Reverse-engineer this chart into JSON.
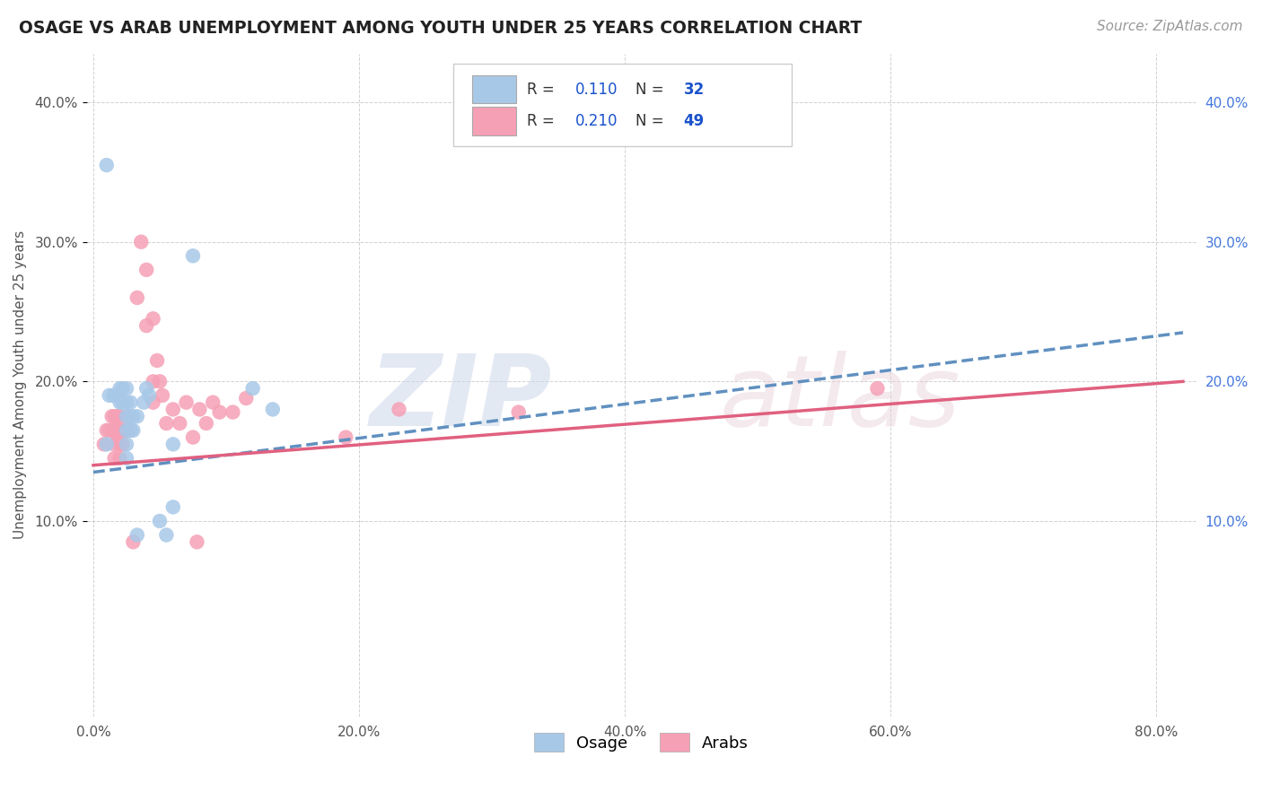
{
  "title": "OSAGE VS ARAB UNEMPLOYMENT AMONG YOUTH UNDER 25 YEARS CORRELATION CHART",
  "source": "Source: ZipAtlas.com",
  "ylabel": "Unemployment Among Youth under 25 years",
  "xlabel_ticks": [
    "0.0%",
    "20.0%",
    "40.0%",
    "60.0%",
    "80.0%"
  ],
  "xlabel_vals": [
    0.0,
    0.2,
    0.4,
    0.6,
    0.8
  ],
  "ylabel_ticks_left": [
    "10.0%",
    "20.0%",
    "30.0%",
    "40.0%"
  ],
  "ylabel_ticks_right": [
    "10.0%",
    "20.0%",
    "30.0%",
    "40.0%"
  ],
  "ylabel_vals": [
    0.1,
    0.2,
    0.3,
    0.4
  ],
  "xlim": [
    -0.005,
    0.83
  ],
  "ylim": [
    -0.04,
    0.435
  ],
  "osage_R": 0.11,
  "osage_N": 32,
  "arab_R": 0.21,
  "arab_N": 49,
  "osage_color": "#a8c8e8",
  "arab_color": "#f5a0b5",
  "osage_line_color": "#6090c0",
  "arab_line_color": "#e06080",
  "background_color": "#ffffff",
  "grid_color": "#cccccc",
  "legend_text_color": "#1a52cc",
  "legend_label_color": "#333333",
  "osage_points": [
    [
      0.01,
      0.155
    ],
    [
      0.012,
      0.19
    ],
    [
      0.015,
      0.19
    ],
    [
      0.018,
      0.19
    ],
    [
      0.02,
      0.195
    ],
    [
      0.02,
      0.185
    ],
    [
      0.022,
      0.195
    ],
    [
      0.022,
      0.185
    ],
    [
      0.025,
      0.195
    ],
    [
      0.025,
      0.185
    ],
    [
      0.025,
      0.175
    ],
    [
      0.025,
      0.165
    ],
    [
      0.025,
      0.155
    ],
    [
      0.025,
      0.145
    ],
    [
      0.028,
      0.185
    ],
    [
      0.028,
      0.175
    ],
    [
      0.028,
      0.165
    ],
    [
      0.03,
      0.175
    ],
    [
      0.03,
      0.165
    ],
    [
      0.033,
      0.175
    ],
    [
      0.038,
      0.185
    ],
    [
      0.04,
      0.195
    ],
    [
      0.042,
      0.19
    ],
    [
      0.05,
      0.1
    ],
    [
      0.055,
      0.09
    ],
    [
      0.06,
      0.11
    ],
    [
      0.06,
      0.155
    ],
    [
      0.075,
      0.29
    ],
    [
      0.12,
      0.195
    ],
    [
      0.135,
      0.18
    ],
    [
      0.01,
      0.355
    ],
    [
      0.033,
      0.09
    ]
  ],
  "arab_points": [
    [
      0.008,
      0.155
    ],
    [
      0.01,
      0.165
    ],
    [
      0.012,
      0.165
    ],
    [
      0.014,
      0.175
    ],
    [
      0.015,
      0.165
    ],
    [
      0.016,
      0.175
    ],
    [
      0.016,
      0.165
    ],
    [
      0.016,
      0.155
    ],
    [
      0.016,
      0.145
    ],
    [
      0.018,
      0.165
    ],
    [
      0.018,
      0.175
    ],
    [
      0.018,
      0.16
    ],
    [
      0.02,
      0.165
    ],
    [
      0.02,
      0.175
    ],
    [
      0.02,
      0.16
    ],
    [
      0.02,
      0.155
    ],
    [
      0.02,
      0.145
    ],
    [
      0.022,
      0.165
    ],
    [
      0.022,
      0.155
    ],
    [
      0.025,
      0.165
    ],
    [
      0.025,
      0.175
    ],
    [
      0.028,
      0.165
    ],
    [
      0.033,
      0.26
    ],
    [
      0.036,
      0.3
    ],
    [
      0.04,
      0.28
    ],
    [
      0.04,
      0.24
    ],
    [
      0.045,
      0.2
    ],
    [
      0.045,
      0.185
    ],
    [
      0.045,
      0.245
    ],
    [
      0.048,
      0.215
    ],
    [
      0.05,
      0.2
    ],
    [
      0.052,
      0.19
    ],
    [
      0.055,
      0.17
    ],
    [
      0.06,
      0.18
    ],
    [
      0.065,
      0.17
    ],
    [
      0.07,
      0.185
    ],
    [
      0.075,
      0.16
    ],
    [
      0.078,
      0.085
    ],
    [
      0.08,
      0.18
    ],
    [
      0.085,
      0.17
    ],
    [
      0.09,
      0.185
    ],
    [
      0.095,
      0.178
    ],
    [
      0.105,
      0.178
    ],
    [
      0.115,
      0.188
    ],
    [
      0.19,
      0.16
    ],
    [
      0.23,
      0.18
    ],
    [
      0.32,
      0.178
    ],
    [
      0.59,
      0.195
    ],
    [
      0.03,
      0.085
    ]
  ]
}
